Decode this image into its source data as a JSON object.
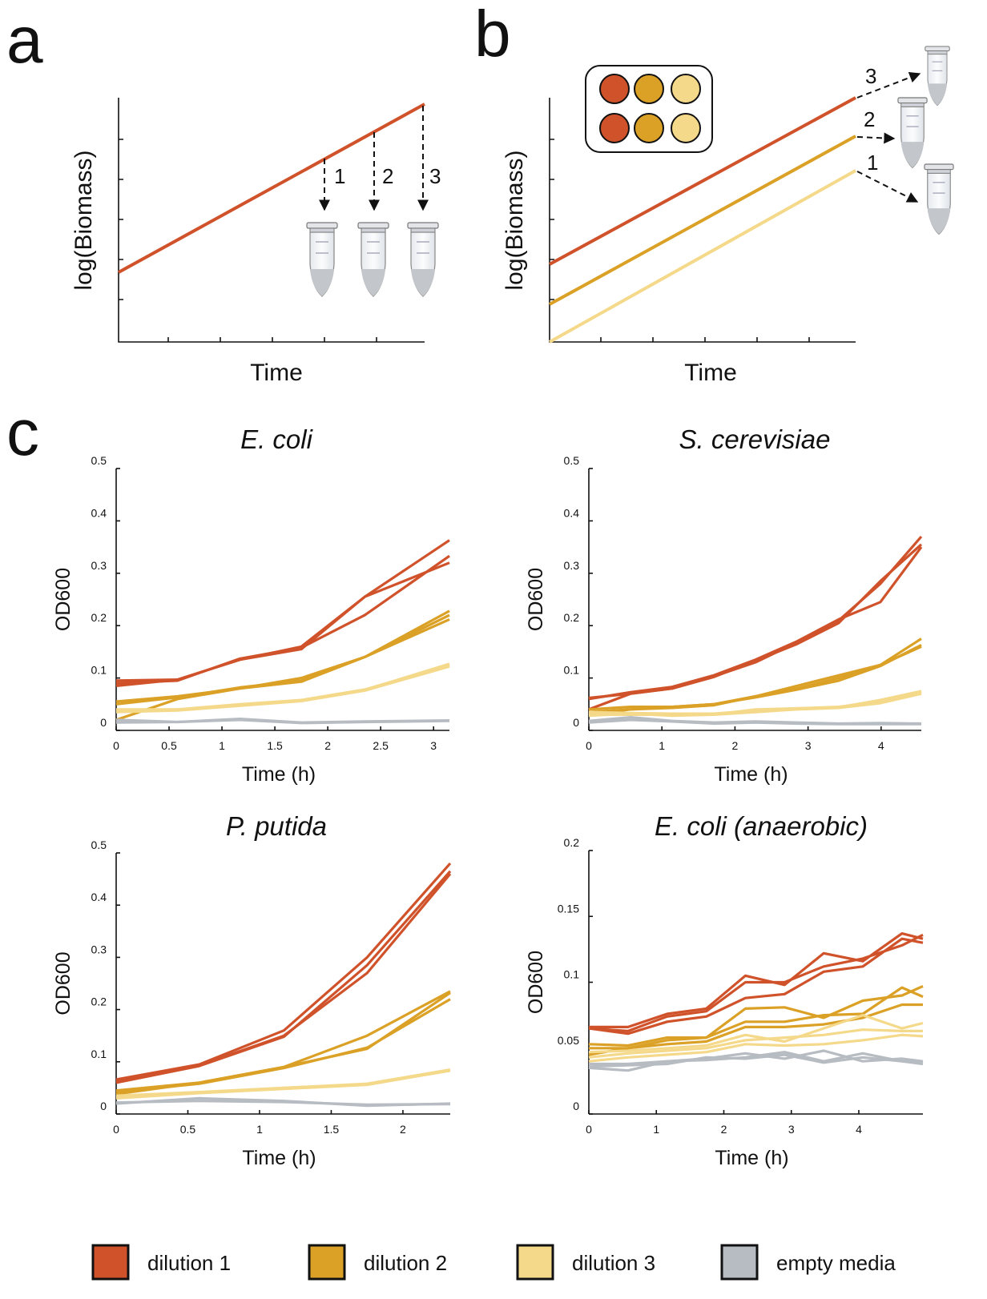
{
  "panels": {
    "a": {
      "label": "a",
      "y_label": "log(Biomass)",
      "x_label": "Time",
      "steps": [
        "1",
        "2",
        "3"
      ]
    },
    "b": {
      "label": "b",
      "y_label": "log(Biomass)",
      "x_label": "Time",
      "steps": [
        "1",
        "2",
        "3"
      ]
    },
    "c": {
      "label": "c"
    }
  },
  "chart_data": [
    {
      "type": "line",
      "title": "E. coli",
      "x_label": "Time (h)",
      "y_label": "OD600",
      "x": [
        0,
        0.58,
        1.17,
        1.75,
        2.35,
        3.15
      ],
      "xlim": [
        0,
        3.15
      ],
      "xticks": [
        0,
        0.5,
        1,
        1.5,
        2,
        2.5,
        3
      ],
      "ylim": [
        0,
        0.5
      ],
      "yticks": [
        0,
        0.1,
        0.2,
        0.3,
        0.4,
        0.5
      ],
      "series": [
        {
          "name": "dilution 1",
          "color": "#d0522a",
          "values": [
            [
              0.095,
              0.097,
              0.135,
              0.16,
              0.255,
              0.363
            ],
            [
              0.09,
              0.095,
              0.137,
              0.158,
              0.22,
              0.333
            ],
            [
              0.085,
              0.097,
              0.135,
              0.155,
              0.255,
              0.32
            ]
          ]
        },
        {
          "name": "dilution 2",
          "color": "#dba126",
          "values": [
            [
              0.055,
              0.065,
              0.08,
              0.1,
              0.14,
              0.228
            ],
            [
              0.05,
              0.063,
              0.082,
              0.095,
              0.14,
              0.22
            ],
            [
              0.02,
              0.06,
              0.08,
              0.093,
              0.14,
              0.212
            ]
          ]
        },
        {
          "name": "dilution 3",
          "color": "#f5d98b",
          "values": [
            [
              0.038,
              0.04,
              0.048,
              0.057,
              0.077,
              0.127
            ],
            [
              0.035,
              0.038,
              0.047,
              0.056,
              0.076,
              0.122
            ],
            [
              0.04,
              0.04,
              0.05,
              0.058,
              0.078,
              0.125
            ]
          ]
        },
        {
          "name": "empty media",
          "color": "#b7bcc2",
          "values": [
            [
              0.02,
              0.016,
              0.022,
              0.015,
              0.017,
              0.019
            ],
            [
              0.015,
              0.016,
              0.02,
              0.014,
              0.016,
              0.018
            ]
          ]
        }
      ]
    },
    {
      "type": "line",
      "title": "S. cerevisiae",
      "x_label": "Time (h)",
      "y_label": "OD600",
      "x": [
        0,
        0.57,
        1.14,
        1.71,
        2.28,
        2.85,
        3.42,
        3.99,
        4.55
      ],
      "xlim": [
        0,
        4.55
      ],
      "xticks": [
        0,
        1,
        2,
        3,
        4
      ],
      "ylim": [
        0,
        0.5
      ],
      "yticks": [
        0,
        0.1,
        0.2,
        0.3,
        0.4,
        0.5
      ],
      "series": [
        {
          "name": "dilution 1",
          "color": "#d0522a",
          "values": [
            [
              0.062,
              0.07,
              0.08,
              0.103,
              0.13,
              0.168,
              0.21,
              0.28,
              0.37
            ],
            [
              0.06,
              0.073,
              0.083,
              0.105,
              0.135,
              0.17,
              0.212,
              0.245,
              0.35
            ],
            [
              0.04,
              0.07,
              0.08,
              0.102,
              0.133,
              0.165,
              0.205,
              0.285,
              0.355
            ]
          ]
        },
        {
          "name": "dilution 2",
          "color": "#dba126",
          "values": [
            [
              0.04,
              0.045,
              0.045,
              0.05,
              0.065,
              0.08,
              0.1,
              0.125,
              0.175
            ],
            [
              0.035,
              0.04,
              0.043,
              0.048,
              0.065,
              0.085,
              0.105,
              0.125,
              0.16
            ],
            [
              0.03,
              0.04,
              0.045,
              0.05,
              0.063,
              0.078,
              0.095,
              0.123,
              0.163
            ]
          ]
        },
        {
          "name": "dilution 3",
          "color": "#f5d98b",
          "values": [
            [
              0.035,
              0.033,
              0.032,
              0.032,
              0.038,
              0.042,
              0.045,
              0.055,
              0.073
            ],
            [
              0.03,
              0.03,
              0.03,
              0.03,
              0.035,
              0.04,
              0.043,
              0.052,
              0.07
            ],
            [
              0.028,
              0.032,
              0.028,
              0.03,
              0.04,
              0.042,
              0.044,
              0.058,
              0.075
            ]
          ]
        },
        {
          "name": "empty media",
          "color": "#b7bcc2",
          "values": [
            [
              0.018,
              0.025,
              0.018,
              0.015,
              0.017,
              0.015,
              0.013,
              0.014,
              0.013
            ],
            [
              0.015,
              0.02,
              0.017,
              0.013,
              0.015,
              0.013,
              0.012,
              0.012,
              0.012
            ]
          ]
        }
      ]
    },
    {
      "type": "line",
      "title": "P. putida",
      "x_label": "Time (h)",
      "y_label": "OD600",
      "x": [
        0,
        0.58,
        1.17,
        1.75,
        2.33
      ],
      "xlim": [
        0,
        2.33
      ],
      "xticks": [
        0,
        0.5,
        1,
        1.5,
        2
      ],
      "ylim": [
        0,
        0.5
      ],
      "yticks": [
        0,
        0.1,
        0.2,
        0.3,
        0.4,
        0.5
      ],
      "series": [
        {
          "name": "dilution 1",
          "color": "#d0522a",
          "values": [
            [
              0.066,
              0.095,
              0.16,
              0.3,
              0.48
            ],
            [
              0.063,
              0.093,
              0.15,
              0.27,
              0.46
            ],
            [
              0.06,
              0.092,
              0.148,
              0.285,
              0.465
            ]
          ]
        },
        {
          "name": "dilution 2",
          "color": "#dba126",
          "values": [
            [
              0.045,
              0.06,
              0.09,
              0.15,
              0.235
            ],
            [
              0.042,
              0.058,
              0.088,
              0.127,
              0.22
            ],
            [
              0.038,
              0.06,
              0.09,
              0.125,
              0.232
            ]
          ]
        },
        {
          "name": "dilution 3",
          "color": "#f5d98b",
          "values": [
            [
              0.035,
              0.042,
              0.05,
              0.058,
              0.085
            ],
            [
              0.03,
              0.04,
              0.048,
              0.056,
              0.083
            ],
            [
              0.032,
              0.041,
              0.05,
              0.057,
              0.084
            ]
          ]
        },
        {
          "name": "empty media",
          "color": "#b7bcc2",
          "values": [
            [
              0.02,
              0.03,
              0.025,
              0.016,
              0.02
            ],
            [
              0.022,
              0.025,
              0.023,
              0.018,
              0.019
            ]
          ]
        }
      ]
    },
    {
      "type": "line",
      "title": "E. coli (anaerobic)",
      "x_label": "Time (h)",
      "y_label": "OD600",
      "x": [
        0,
        0.58,
        1.16,
        1.74,
        2.32,
        2.9,
        3.48,
        4.06,
        4.64,
        4.95
      ],
      "xlim": [
        0,
        4.95
      ],
      "xticks": [
        0,
        1,
        2,
        3,
        4
      ],
      "ylim": [
        0,
        0.2
      ],
      "yticks": [
        0,
        0.05,
        0.1,
        0.15,
        0.2
      ],
      "series": [
        {
          "name": "dilution 1",
          "color": "#d0522a",
          "values": [
            [
              0.066,
              0.066,
              0.076,
              0.08,
              0.105,
              0.098,
              0.122,
              0.116,
              0.137,
              0.133
            ],
            [
              0.065,
              0.063,
              0.074,
              0.078,
              0.1,
              0.1,
              0.112,
              0.118,
              0.128,
              0.136
            ],
            [
              0.065,
              0.061,
              0.07,
              0.074,
              0.088,
              0.091,
              0.108,
              0.112,
              0.133,
              0.13
            ]
          ]
        },
        {
          "name": "dilution 2",
          "color": "#dba126",
          "values": [
            [
              0.053,
              0.052,
              0.058,
              0.058,
              0.08,
              0.081,
              0.073,
              0.086,
              0.09,
              0.097
            ],
            [
              0.05,
              0.05,
              0.056,
              0.058,
              0.07,
              0.07,
              0.075,
              0.076,
              0.096,
              0.089
            ],
            [
              0.045,
              0.05,
              0.053,
              0.055,
              0.066,
              0.066,
              0.068,
              0.073,
              0.083,
              0.083
            ]
          ]
        },
        {
          "name": "dilution 3",
          "color": "#f5d98b",
          "values": [
            [
              0.047,
              0.048,
              0.05,
              0.052,
              0.06,
              0.055,
              0.065,
              0.075,
              0.065,
              0.069
            ],
            [
              0.043,
              0.046,
              0.048,
              0.05,
              0.056,
              0.058,
              0.06,
              0.064,
              0.063,
              0.063
            ],
            [
              0.04,
              0.043,
              0.045,
              0.047,
              0.053,
              0.052,
              0.053,
              0.056,
              0.06,
              0.059
            ]
          ]
        },
        {
          "name": "empty media",
          "color": "#b7bcc2",
          "values": [
            [
              0.038,
              0.038,
              0.04,
              0.042,
              0.046,
              0.042,
              0.048,
              0.04,
              0.042,
              0.04
            ],
            [
              0.035,
              0.033,
              0.04,
              0.041,
              0.043,
              0.047,
              0.04,
              0.046,
              0.04,
              0.038
            ],
            [
              0.036,
              0.037,
              0.038,
              0.043,
              0.042,
              0.045,
              0.039,
              0.043,
              0.04,
              0.039
            ]
          ]
        }
      ]
    }
  ]
}
